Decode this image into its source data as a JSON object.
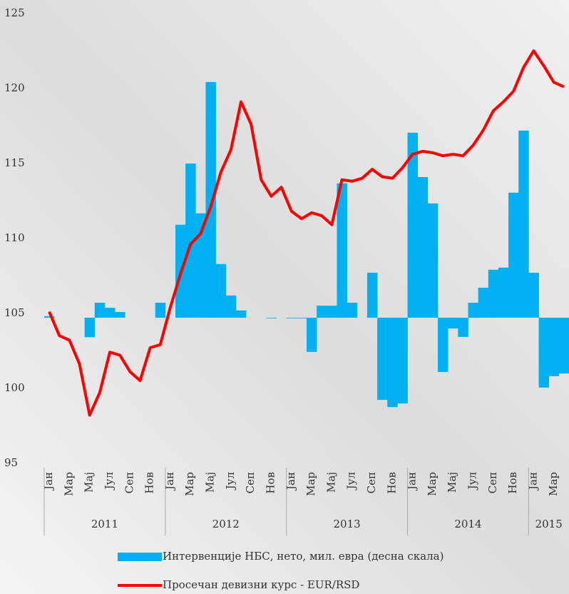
{
  "chart_data": {
    "type": "bar-line",
    "categories": [
      "Јан",
      null,
      "Мар",
      null,
      "Мај",
      null,
      "Јул",
      null,
      "Сеп",
      null,
      "Нов",
      null,
      "Јан",
      null,
      "Мар",
      null,
      "Мај",
      null,
      "Јул",
      null,
      "Сеп",
      null,
      "Нов",
      null,
      "Јан",
      null,
      "Мар",
      null,
      "Мај",
      null,
      "Јул",
      null,
      "Сеп",
      null,
      "Нов",
      null,
      "Јан",
      null,
      "Мар",
      null,
      "Мај",
      null,
      "Јул",
      null,
      "Сеп",
      null,
      "Нов",
      null,
      "Јан",
      null,
      "Мар",
      null
    ],
    "groups": [
      "2011",
      "2012",
      "2013",
      "2014",
      "2015"
    ],
    "series": [
      {
        "name": "Интервенције НБС, нето, мил. евра (десна скала)",
        "type": "bar",
        "axis": "y2",
        "color": "#00b0f0",
        "values": [
          5,
          0,
          0,
          0,
          -65,
          50,
          33,
          19,
          0,
          0,
          0,
          50,
          0,
          310,
          514,
          348,
          786,
          179,
          74,
          24,
          0,
          0,
          -2,
          0,
          -2,
          -2,
          -114,
          40,
          40,
          448,
          50,
          0,
          150,
          -274,
          -298,
          -286,
          617,
          469,
          381,
          -181,
          -36,
          -64,
          50,
          100,
          160,
          167,
          417,
          624,
          150,
          -233,
          -195,
          -186
        ]
      },
      {
        "name": "Просечан девизни курс - EUR/RSD",
        "type": "line",
        "color": "#ff0000",
        "values": [
          105.4,
          103.8,
          103.5,
          101.9,
          98.5,
          100.0,
          102.7,
          102.5,
          101.4,
          100.8,
          103.0,
          103.2,
          105.7,
          107.9,
          109.9,
          110.6,
          112.4,
          114.7,
          116.2,
          119.4,
          117.9,
          114.2,
          113.1,
          113.7,
          112.1,
          111.6,
          112.0,
          111.8,
          111.2,
          114.2,
          114.1,
          114.3,
          114.9,
          114.4,
          114.3,
          115.0,
          115.9,
          116.1,
          116.0,
          115.8,
          115.9,
          115.8,
          116.5,
          117.5,
          118.8,
          119.4,
          120.1,
          121.7,
          122.8,
          121.8,
          120.7,
          120.4
        ]
      }
    ],
    "ylim": [
      95,
      125
    ],
    "yticks": [
      95,
      100,
      105,
      110,
      115,
      120,
      125
    ],
    "y2lim": [
      -500,
      1000
    ],
    "legend": "bottom"
  }
}
